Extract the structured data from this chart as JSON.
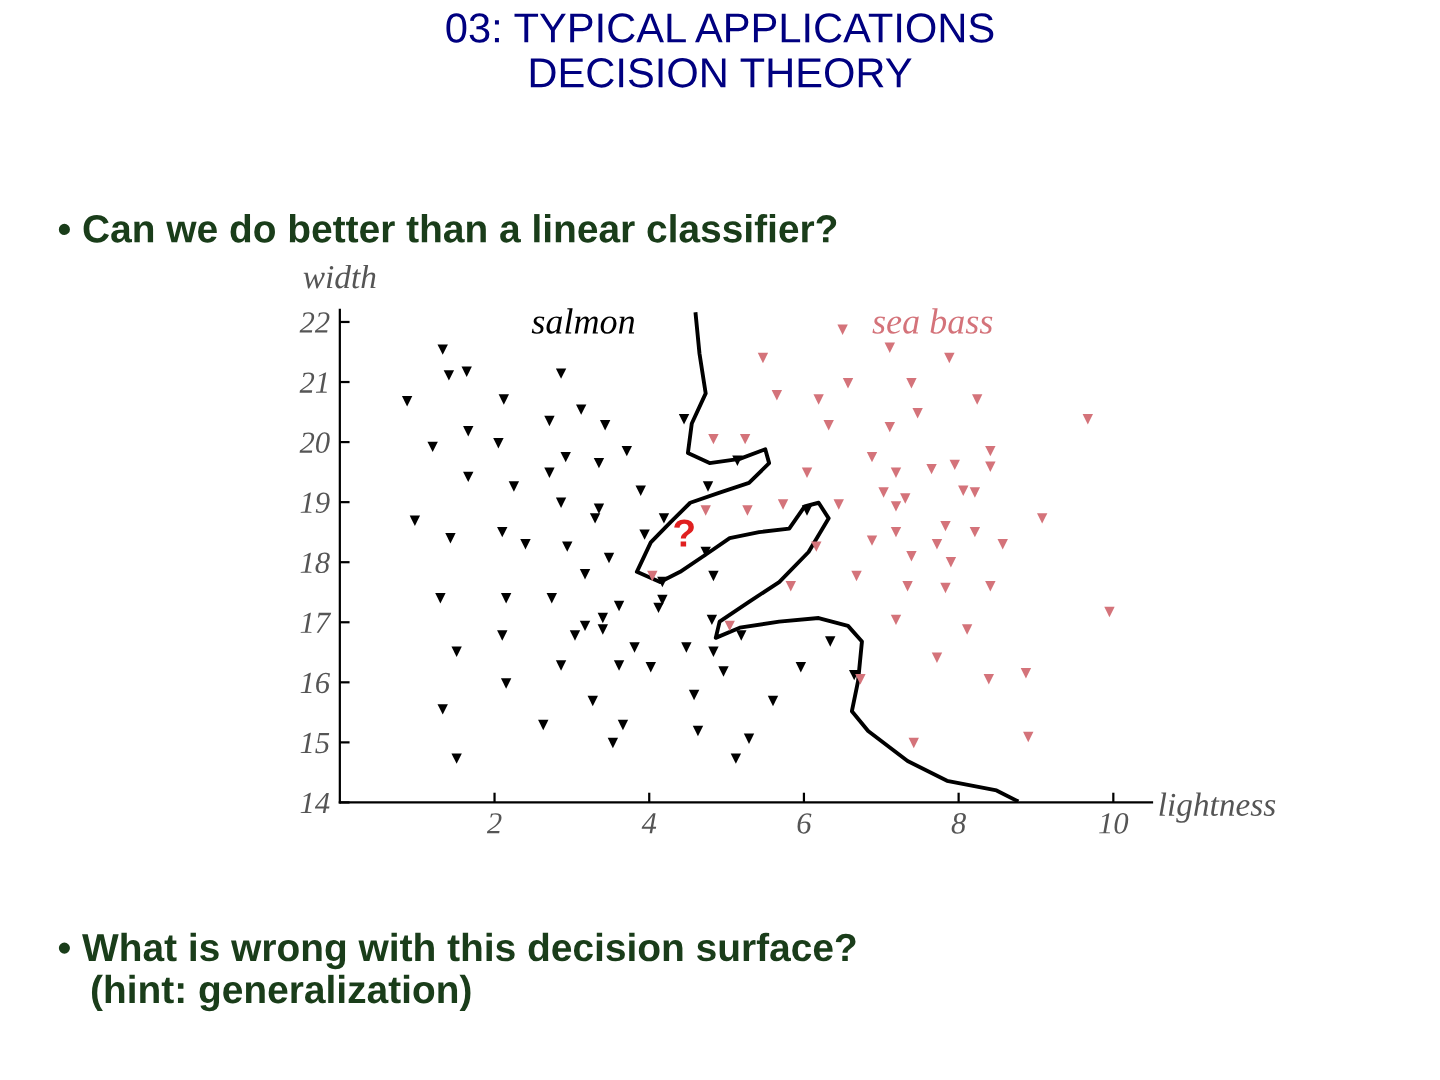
{
  "chart_data": {
    "type": "scatter",
    "title": "03: TYPICAL APPLICATIONS\nDECISION THEORY",
    "subtitle": "• Can we do better than a linear classifier?",
    "xlabel": "lightness",
    "ylabel": "width",
    "xlim": [
      0,
      10.5
    ],
    "ylim": [
      14,
      22.2
    ],
    "xticks": [
      2,
      4,
      6,
      8,
      10
    ],
    "yticks": [
      14,
      15,
      16,
      17,
      18,
      19,
      20,
      21,
      22
    ],
    "grid": false,
    "marker": "triangle",
    "annotations": [
      "?",
      "• What is wrong with this decision surface?\n   (hint: generalization)"
    ],
    "series": [
      {
        "name": "salmon",
        "color": "#000000",
        "x": [
          1.33,
          1.41,
          1.64,
          0.87,
          2.12,
          2.86,
          3.12,
          3.43,
          2.71,
          1.2,
          1.66,
          2.05,
          2.92,
          3.35,
          3.71,
          4.45,
          1.66,
          2.25,
          2.71,
          3.89,
          2.86,
          3.35,
          3.3,
          4.19,
          0.97,
          5.14,
          4.76,
          1.43,
          2.1,
          2.4,
          2.94,
          3.48,
          3.94,
          3.17,
          1.3,
          2.15,
          2.74,
          3.61,
          4.12,
          4.17,
          4.17,
          4.73,
          4.83,
          2.1,
          3.04,
          3.17,
          3.4,
          3.4,
          1.51,
          3.81,
          4.48,
          4.83,
          4.81,
          5.19,
          2.86,
          3.61,
          4.02,
          4.96,
          2.15,
          3.27,
          4.58,
          1.33,
          2.63,
          3.66,
          4.63,
          3.53,
          1.51,
          5.12,
          5.29,
          6.34,
          5.96,
          6.65,
          5.6,
          6.04
        ],
        "values": [
          21.54,
          21.11,
          21.17,
          20.68,
          20.71,
          21.14,
          20.54,
          20.28,
          20.35,
          19.92,
          20.18,
          19.98,
          19.75,
          19.65,
          19.85,
          20.38,
          19.42,
          19.26,
          19.49,
          19.19,
          18.99,
          18.89,
          18.73,
          18.73,
          18.69,
          19.69,
          19.26,
          18.4,
          18.5,
          18.3,
          18.26,
          18.07,
          18.46,
          17.8,
          17.4,
          17.4,
          17.4,
          17.27,
          17.24,
          17.37,
          17.67,
          18.17,
          17.77,
          16.78,
          16.78,
          16.94,
          16.88,
          17.07,
          16.51,
          16.58,
          16.58,
          16.51,
          17.04,
          16.78,
          16.28,
          16.28,
          16.25,
          16.18,
          15.98,
          15.69,
          15.79,
          15.55,
          15.29,
          15.29,
          15.19,
          14.99,
          14.73,
          14.73,
          15.06,
          16.68,
          16.25,
          16.12,
          15.69,
          18.86
        ]
      },
      {
        "name": "sea bass",
        "color": "#d4737a",
        "x": [
          6.5,
          5.47,
          7.11,
          7.88,
          5.65,
          6.19,
          6.57,
          7.39,
          8.24,
          9.67,
          6.32,
          7.11,
          7.47,
          4.83,
          5.24,
          8.41,
          8.41,
          6.88,
          6.04,
          7.19,
          7.65,
          7.95,
          7.03,
          7.31,
          8.06,
          8.21,
          7.19,
          4.73,
          5.27,
          5.73,
          6.45,
          9.08,
          6.16,
          6.88,
          7.19,
          7.83,
          8.21,
          7.39,
          7.72,
          7.9,
          8.57,
          5.83,
          6.68,
          7.34,
          7.83,
          8.41,
          9.95,
          5.04,
          7.19,
          8.11,
          7.72,
          6.73,
          8.39,
          8.87,
          7.42,
          8.9,
          4.04
        ],
        "values": [
          21.87,
          21.4,
          21.57,
          21.4,
          20.78,
          20.71,
          20.98,
          20.98,
          20.71,
          20.38,
          20.28,
          20.25,
          20.48,
          20.05,
          20.05,
          19.85,
          19.59,
          19.75,
          19.49,
          19.49,
          19.55,
          19.62,
          19.16,
          19.06,
          19.19,
          19.16,
          18.93,
          18.86,
          18.86,
          18.96,
          18.96,
          18.73,
          18.26,
          18.36,
          18.5,
          18.6,
          18.5,
          18.1,
          18.3,
          18.0,
          18.3,
          17.6,
          17.77,
          17.6,
          17.57,
          17.6,
          17.17,
          16.94,
          17.04,
          16.88,
          16.41,
          16.05,
          16.05,
          16.15,
          14.99,
          15.09,
          17.77
        ]
      },
      {
        "type": "line",
        "color": "#000000",
        "marker": "none",
        "x": [
          4.6,
          4.65,
          4.73,
          4.55,
          4.5,
          4.78,
          5.17,
          5.5,
          5.55,
          5.29,
          4.91,
          4.53,
          4.27,
          4.02,
          3.84,
          4.14,
          4.4,
          4.78,
          5.04,
          5.42,
          5.81,
          6.01,
          6.19,
          6.32,
          6.06,
          5.68,
          5.29,
          4.91,
          4.86,
          5.17,
          5.68,
          6.19,
          6.57,
          6.75,
          6.7,
          6.62,
          6.83,
          7.34,
          7.85,
          8.49,
          8.75
        ],
        "values": [
          22.13,
          21.47,
          20.81,
          20.31,
          19.82,
          19.65,
          19.72,
          19.88,
          19.65,
          19.32,
          19.16,
          18.99,
          18.66,
          18.33,
          17.84,
          17.67,
          17.84,
          18.17,
          18.4,
          18.5,
          18.56,
          18.93,
          18.99,
          18.73,
          18.17,
          17.67,
          17.34,
          17.01,
          16.74,
          16.91,
          17.01,
          17.07,
          16.94,
          16.68,
          16.02,
          15.52,
          15.19,
          14.69,
          14.36,
          14.2,
          14.03
        ]
      }
    ]
  }
}
